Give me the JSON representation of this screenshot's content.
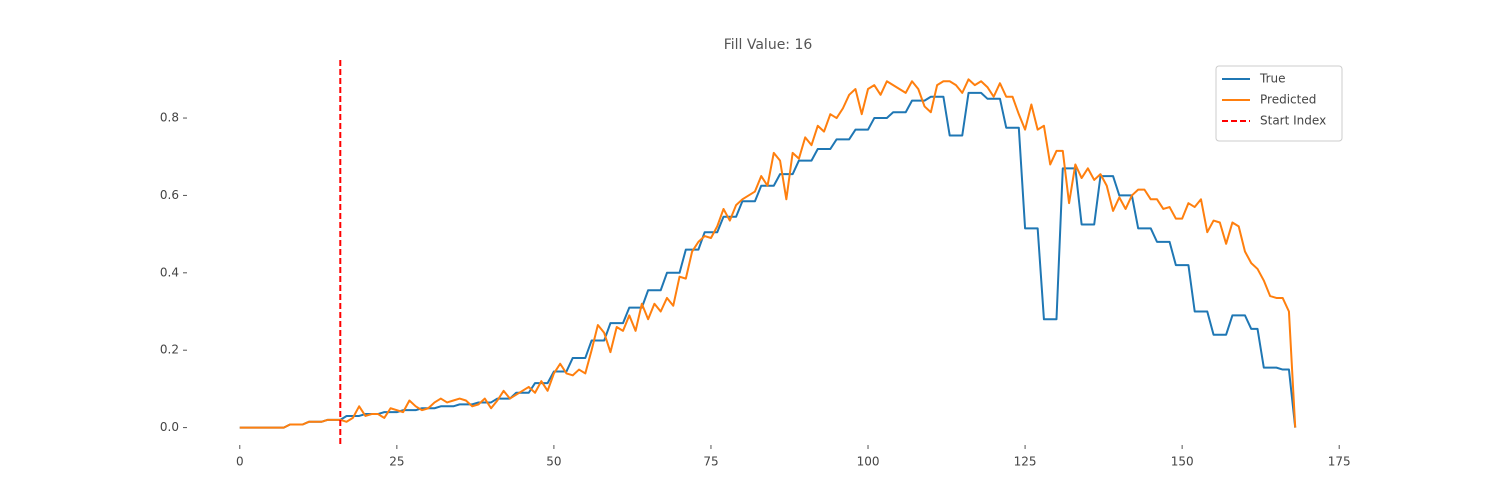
{
  "chart_data": {
    "type": "line",
    "title": "Fill Value: 16",
    "x": [
      0,
      1,
      2,
      3,
      4,
      5,
      6,
      7,
      8,
      9,
      10,
      11,
      12,
      13,
      14,
      15,
      16,
      17,
      18,
      19,
      20,
      21,
      22,
      23,
      24,
      25,
      26,
      27,
      28,
      29,
      30,
      31,
      32,
      33,
      34,
      35,
      36,
      37,
      38,
      39,
      40,
      41,
      42,
      43,
      44,
      45,
      46,
      47,
      48,
      49,
      50,
      51,
      52,
      53,
      54,
      55,
      56,
      57,
      58,
      59,
      60,
      61,
      62,
      63,
      64,
      65,
      66,
      67,
      68,
      69,
      70,
      71,
      72,
      73,
      74,
      75,
      76,
      77,
      78,
      79,
      80,
      81,
      82,
      83,
      84,
      85,
      86,
      87,
      88,
      89,
      90,
      91,
      92,
      93,
      94,
      95,
      96,
      97,
      98,
      99,
      100,
      101,
      102,
      103,
      104,
      105,
      106,
      107,
      108,
      109,
      110,
      111,
      112,
      113,
      114,
      115,
      116,
      117,
      118,
      119,
      120,
      121,
      122,
      123,
      124,
      125,
      126,
      127,
      128,
      129,
      130,
      131,
      132,
      133,
      134,
      135,
      136,
      137,
      138,
      139,
      140,
      141,
      142,
      143,
      144,
      145,
      146,
      147,
      148,
      149,
      150,
      151,
      152,
      153,
      154,
      155,
      156,
      157,
      158,
      159,
      160,
      161,
      162,
      163,
      164,
      165,
      166,
      167,
      168
    ],
    "series": [
      {
        "name": "True",
        "color": "#1f77b4",
        "values": [
          0,
          0,
          0,
          0,
          0,
          0,
          0,
          0,
          0.008,
          0.008,
          0.008,
          0.015,
          0.015,
          0.015,
          0.02,
          0.02,
          0.02,
          0.03,
          0.03,
          0.03,
          0.035,
          0.035,
          0.035,
          0.04,
          0.04,
          0.04,
          0.045,
          0.045,
          0.045,
          0.05,
          0.05,
          0.05,
          0.055,
          0.055,
          0.055,
          0.06,
          0.06,
          0.06,
          0.065,
          0.065,
          0.065,
          0.075,
          0.075,
          0.075,
          0.09,
          0.09,
          0.09,
          0.115,
          0.115,
          0.115,
          0.145,
          0.145,
          0.145,
          0.18,
          0.18,
          0.18,
          0.225,
          0.225,
          0.225,
          0.27,
          0.27,
          0.27,
          0.31,
          0.31,
          0.31,
          0.355,
          0.355,
          0.355,
          0.4,
          0.4,
          0.4,
          0.46,
          0.46,
          0.46,
          0.505,
          0.505,
          0.505,
          0.545,
          0.545,
          0.545,
          0.585,
          0.585,
          0.585,
          0.625,
          0.625,
          0.625,
          0.655,
          0.655,
          0.655,
          0.69,
          0.69,
          0.69,
          0.72,
          0.72,
          0.72,
          0.745,
          0.745,
          0.745,
          0.77,
          0.77,
          0.77,
          0.8,
          0.8,
          0.8,
          0.815,
          0.815,
          0.815,
          0.845,
          0.845,
          0.845,
          0.855,
          0.855,
          0.855,
          0.755,
          0.755,
          0.755,
          0.865,
          0.865,
          0.865,
          0.85,
          0.85,
          0.85,
          0.775,
          0.775,
          0.775,
          0.515,
          0.515,
          0.515,
          0.28,
          0.28,
          0.28,
          0.67,
          0.67,
          0.67,
          0.525,
          0.525,
          0.525,
          0.65,
          0.65,
          0.65,
          0.6,
          0.6,
          0.6,
          0.515,
          0.515,
          0.515,
          0.48,
          0.48,
          0.48,
          0.42,
          0.42,
          0.42,
          0.3,
          0.3,
          0.3,
          0.24,
          0.24,
          0.24,
          0.29,
          0.29,
          0.29,
          0.255,
          0.255,
          0.155,
          0.155,
          0.155,
          0.15,
          0.15,
          0
        ]
      },
      {
        "name": "Predicted",
        "color": "#ff7f0e",
        "values": [
          0,
          0,
          0,
          0,
          0,
          0,
          0,
          0,
          0.008,
          0.008,
          0.008,
          0.015,
          0.015,
          0.015,
          0.02,
          0.02,
          0.02,
          0.015,
          0.025,
          0.055,
          0.03,
          0.035,
          0.035,
          0.025,
          0.05,
          0.045,
          0.04,
          0.07,
          0.055,
          0.045,
          0.05,
          0.065,
          0.075,
          0.065,
          0.07,
          0.075,
          0.07,
          0.055,
          0.06,
          0.075,
          0.05,
          0.07,
          0.095,
          0.075,
          0.085,
          0.095,
          0.105,
          0.09,
          0.12,
          0.095,
          0.14,
          0.165,
          0.14,
          0.135,
          0.15,
          0.14,
          0.2,
          0.265,
          0.245,
          0.195,
          0.26,
          0.25,
          0.29,
          0.25,
          0.32,
          0.28,
          0.32,
          0.3,
          0.335,
          0.315,
          0.39,
          0.385,
          0.455,
          0.48,
          0.495,
          0.49,
          0.52,
          0.565,
          0.535,
          0.575,
          0.59,
          0.6,
          0.61,
          0.65,
          0.625,
          0.71,
          0.69,
          0.59,
          0.71,
          0.695,
          0.75,
          0.73,
          0.78,
          0.765,
          0.81,
          0.8,
          0.825,
          0.86,
          0.875,
          0.81,
          0.875,
          0.885,
          0.86,
          0.895,
          0.885,
          0.875,
          0.865,
          0.895,
          0.875,
          0.83,
          0.815,
          0.885,
          0.895,
          0.895,
          0.885,
          0.865,
          0.9,
          0.885,
          0.895,
          0.88,
          0.855,
          0.89,
          0.855,
          0.855,
          0.81,
          0.77,
          0.835,
          0.77,
          0.78,
          0.68,
          0.715,
          0.715,
          0.58,
          0.68,
          0.645,
          0.67,
          0.64,
          0.655,
          0.625,
          0.56,
          0.595,
          0.565,
          0.6,
          0.615,
          0.615,
          0.59,
          0.59,
          0.565,
          0.57,
          0.54,
          0.54,
          0.58,
          0.57,
          0.59,
          0.505,
          0.535,
          0.53,
          0.475,
          0.53,
          0.52,
          0.455,
          0.425,
          0.41,
          0.38,
          0.34,
          0.335,
          0.335,
          0.3,
          0
        ]
      }
    ],
    "vline": {
      "name": "Start Index",
      "x": 16,
      "color": "#ff0000",
      "dashed": true
    },
    "xlim": [
      -8.4,
      176.4
    ],
    "ylim": [
      -0.045,
      0.95
    ],
    "xticks": [
      0,
      25,
      50,
      75,
      100,
      125,
      150,
      175
    ],
    "yticks": [
      {
        "value": 0,
        "label": "0.0"
      },
      0.2,
      0.4,
      0.6,
      0.8
    ],
    "legend": "upper right",
    "grid": false
  }
}
